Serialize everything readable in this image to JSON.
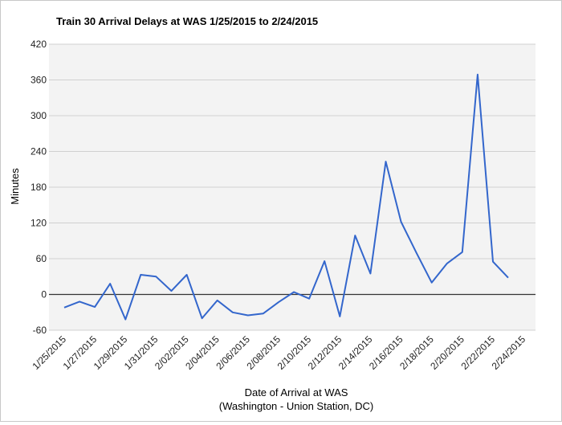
{
  "chart_data": {
    "type": "line",
    "title": "Train 30 Arrival Delays at WAS 1/25/2015 to 2/24/2015",
    "xlabel": "Date of Arrival at WAS",
    "xlabel_sub": "(Washington - Union Station, DC)",
    "ylabel": "Minutes",
    "ylim": [
      -60,
      420
    ],
    "yticks": [
      -60,
      0,
      60,
      120,
      180,
      240,
      300,
      360,
      420
    ],
    "xtick_labels": [
      "1/25/2015",
      "1/27/2015",
      "1/29/2015",
      "1/31/2015",
      "2/02/2015",
      "2/04/2015",
      "2/06/2015",
      "2/08/2015",
      "2/10/2015",
      "2/12/2015",
      "2/14/2015",
      "2/16/2015",
      "2/18/2015",
      "2/20/2015",
      "2/22/2015",
      "2/24/2015"
    ],
    "grid": true,
    "legend": "none",
    "series": [
      {
        "color": "#3366cc",
        "x": [
          "1/25/2015",
          "1/26/2015",
          "1/27/2015",
          "1/28/2015",
          "1/29/2015",
          "1/30/2015",
          "1/31/2015",
          "2/01/2015",
          "2/02/2015",
          "2/03/2015",
          "2/04/2015",
          "2/05/2015",
          "2/06/2015",
          "2/07/2015",
          "2/08/2015",
          "2/09/2015",
          "2/10/2015",
          "2/11/2015",
          "2/12/2015",
          "2/13/2015",
          "2/14/2015",
          "2/15/2015",
          "2/16/2015",
          "2/17/2015",
          "2/18/2015",
          "2/19/2015",
          "2/20/2015",
          "2/21/2015",
          "2/22/2015",
          "2/23/2015"
        ],
        "values": [
          -22,
          -12,
          -21,
          18,
          -42,
          33,
          30,
          6,
          33,
          -40,
          -10,
          -30,
          -35,
          -32,
          -13,
          4,
          -7,
          56,
          -37,
          99,
          35,
          223,
          122,
          70,
          20,
          52,
          71,
          369,
          55,
          28
        ]
      }
    ]
  }
}
